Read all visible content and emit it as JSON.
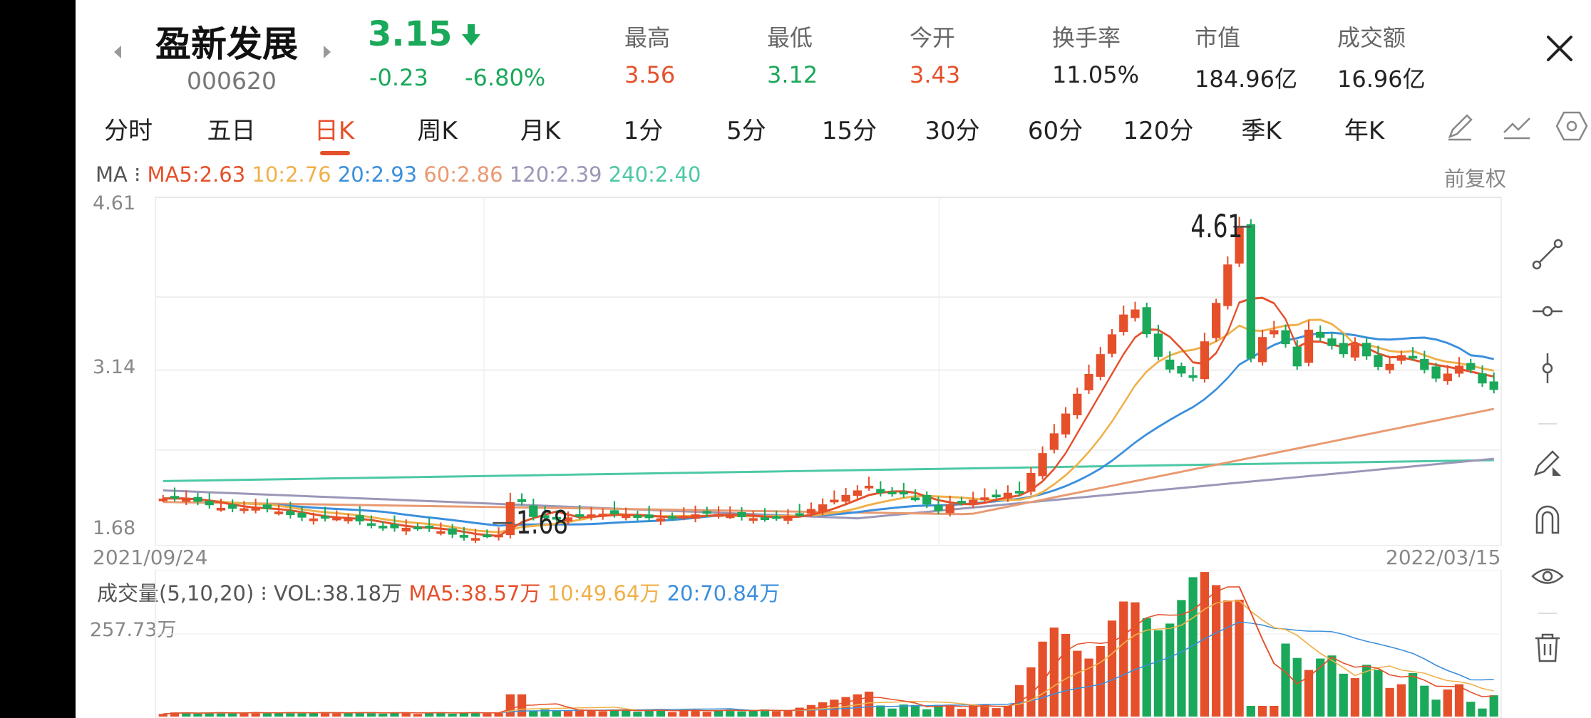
{
  "header": {
    "name": "盈新发展",
    "code": "000620",
    "price": "3.15",
    "change": "-0.23",
    "change_pct": "-6.80%",
    "stats": [
      {
        "label": "最高",
        "value": "3.56",
        "color": "red"
      },
      {
        "label": "最低",
        "value": "3.12",
        "color": "green"
      },
      {
        "label": "今开",
        "value": "3.43",
        "color": "red"
      },
      {
        "label": "换手率",
        "value": "11.05%",
        "color": "neutral"
      },
      {
        "label": "市值",
        "value": "184.96亿",
        "color": "neutral"
      },
      {
        "label": "成交额",
        "value": "16.96亿",
        "color": "neutral"
      }
    ]
  },
  "tabs": [
    "分时",
    "五日",
    "日K",
    "周K",
    "月K",
    "1分",
    "5分",
    "15分",
    "30分",
    "60分",
    "120分",
    "季K",
    "年K"
  ],
  "active_tab": "日K",
  "ma_legend": {
    "prefix": "MA",
    "items": [
      "MA5:2.63",
      "10:2.76",
      "20:2.93",
      "60:2.86",
      "120:2.39",
      "240:2.40"
    ],
    "adjust": "前复权"
  },
  "price_axis": {
    "top": "4.61",
    "mid": "3.14",
    "bottom": "1.68"
  },
  "markers": {
    "high": "4.61",
    "low": "1.68"
  },
  "dates": {
    "start": "2021/09/24",
    "end": "2022/03/15"
  },
  "volume_legend": {
    "title": "成交量(5,10,20)",
    "vol": "VOL:38.18万",
    "ma5": "MA5:38.57万",
    "ma10": "10:49.64万",
    "ma20": "20:70.84万"
  },
  "volume_axis": {
    "top": "257.73万"
  },
  "colors": {
    "up": "#e5502b",
    "down": "#1aa85a",
    "ma5": "#e5502b",
    "ma10": "#f0b04a",
    "ma20": "#3b8fdc",
    "ma60": "#e89a72",
    "ma120": "#9a97b8",
    "ma240": "#4cc8a5"
  },
  "icons": [
    "close-icon",
    "pencil-icon",
    "trend-line-icon",
    "hexagon-icon",
    "ray-line-icon",
    "horizontal-line-icon",
    "vertical-line-icon",
    "draw-tool-icon",
    "magnet-icon",
    "eye-icon",
    "trash-icon"
  ]
}
